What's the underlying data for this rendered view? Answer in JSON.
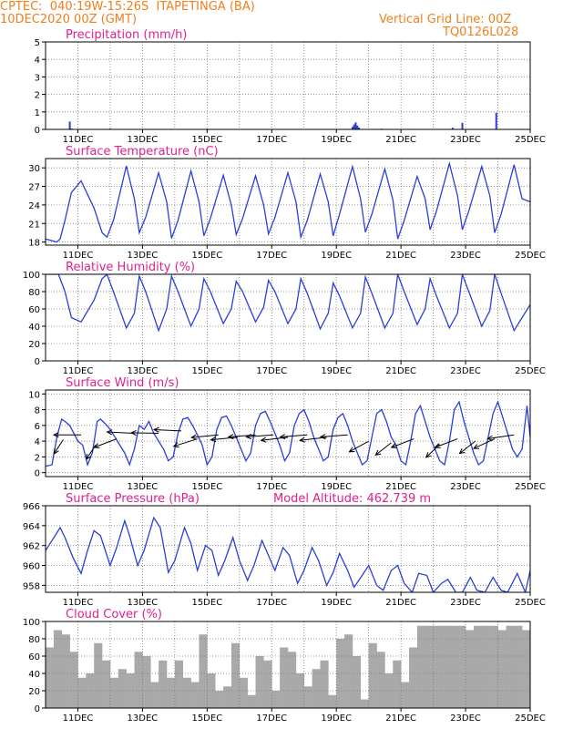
{
  "header": {
    "line1_left": "CPTEC:  040:19W-15:26S  ITAPETINGA (BA)",
    "line2_left": "10DEC2020 00Z (GMT)",
    "line2_right": "Vertical Grid Line: 00Z",
    "line3_right": "TQ0126L028"
  },
  "x_axis": {
    "tick_labels": [
      "11DEC",
      "13DEC",
      "15DEC",
      "17DEC",
      "19DEC",
      "21DEC",
      "23DEC",
      "25DEC"
    ],
    "tick_days": [
      1,
      3,
      5,
      7,
      9,
      11,
      13,
      15
    ],
    "range_days": [
      0,
      15
    ]
  },
  "colors": {
    "title": "#e0208f",
    "header": "#f07f1a",
    "line": "#2a3fd6",
    "cloud": "#a9a9a9",
    "grid": "#777777"
  },
  "chart_data": [
    {
      "type": "bar",
      "title": "Precipitation (mm/h)",
      "ylim": [
        0,
        5
      ],
      "yticks": [
        0,
        1,
        2,
        3,
        4,
        5
      ],
      "grid": true,
      "x": [
        0.75,
        0.8,
        2.0,
        5.0,
        9.5,
        9.55,
        9.6,
        9.65,
        9.7,
        10.4,
        11.3,
        12.6,
        12.9,
        13.95,
        14.8
      ],
      "values": [
        0.45,
        0.05,
        0.05,
        0.04,
        0.15,
        0.28,
        0.4,
        0.22,
        0.1,
        0.04,
        0.03,
        0.1,
        0.38,
        0.95,
        0.03
      ]
    },
    {
      "type": "line",
      "title": "Surface Temperature (nC)",
      "ylim": [
        17.5,
        31.5
      ],
      "yticks": [
        18,
        21,
        24,
        27,
        30
      ],
      "grid": true,
      "x": [
        0,
        0.35,
        0.45,
        0.6,
        0.8,
        1.1,
        1.5,
        1.75,
        1.9,
        2.1,
        2.5,
        2.75,
        2.9,
        3.1,
        3.5,
        3.75,
        3.9,
        4.1,
        4.5,
        4.75,
        4.9,
        5.1,
        5.5,
        5.75,
        5.9,
        6.1,
        6.5,
        6.75,
        6.9,
        7.1,
        7.5,
        7.75,
        7.9,
        8.1,
        8.5,
        8.75,
        8.9,
        9.1,
        9.5,
        9.75,
        9.9,
        10.1,
        10.5,
        10.75,
        10.9,
        11.1,
        11.5,
        11.75,
        11.9,
        12.1,
        12.5,
        12.75,
        12.9,
        13.1,
        13.5,
        13.75,
        13.9,
        14.1,
        14.5,
        14.75,
        15.0
      ],
      "series": [
        {
          "values": [
            18.5,
            18.0,
            18.5,
            21.5,
            26.0,
            27.9,
            23.5,
            19.5,
            18.8,
            21.5,
            30.3,
            25.0,
            19.5,
            22.0,
            29.2,
            24.5,
            18.6,
            21.5,
            29.5,
            24.5,
            19.0,
            21.8,
            28.8,
            24.0,
            19.2,
            21.8,
            28.7,
            24.0,
            19.3,
            22.0,
            29.2,
            24.5,
            18.8,
            21.5,
            29.0,
            24.5,
            19.0,
            22.5,
            30.2,
            25.0,
            19.6,
            22.5,
            29.8,
            24.8,
            18.5,
            21.5,
            28.6,
            25.0,
            20.0,
            23.0,
            30.7,
            25.5,
            20.0,
            23.0,
            30.2,
            25.5,
            19.5,
            22.5,
            30.5,
            25.0,
            24.5
          ]
        }
      ]
    },
    {
      "type": "line",
      "title": "Relative Humidity (%)",
      "ylim": [
        0,
        100
      ],
      "yticks": [
        0,
        20,
        40,
        60,
        80,
        100
      ],
      "grid": true,
      "x": [
        0,
        0.4,
        0.6,
        0.8,
        1.1,
        1.5,
        1.75,
        1.9,
        2.1,
        2.5,
        2.75,
        2.9,
        3.1,
        3.5,
        3.75,
        3.9,
        4.1,
        4.5,
        4.75,
        4.9,
        5.1,
        5.5,
        5.75,
        5.9,
        6.1,
        6.5,
        6.75,
        6.9,
        7.1,
        7.5,
        7.75,
        7.9,
        8.1,
        8.5,
        8.75,
        8.9,
        9.1,
        9.5,
        9.75,
        9.9,
        10.1,
        10.5,
        10.75,
        10.9,
        11.1,
        11.5,
        11.75,
        11.9,
        12.1,
        12.5,
        12.75,
        12.9,
        13.1,
        13.5,
        13.75,
        13.9,
        14.1,
        14.5,
        14.75,
        15.0
      ],
      "series": [
        {
          "values": [
            100,
            100,
            80,
            50,
            45,
            70,
            95,
            100,
            80,
            38,
            55,
            98,
            80,
            35,
            60,
            98,
            80,
            40,
            60,
            95,
            80,
            43,
            60,
            92,
            80,
            45,
            62,
            93,
            80,
            43,
            60,
            95,
            78,
            37,
            55,
            90,
            75,
            38,
            55,
            97,
            78,
            38,
            55,
            100,
            80,
            42,
            60,
            95,
            75,
            38,
            55,
            100,
            80,
            40,
            58,
            100,
            78,
            35,
            50,
            65
          ]
        }
      ]
    },
    {
      "type": "line",
      "title": "Surface Wind (m/s)",
      "ylim": [
        -0.5,
        10.5
      ],
      "yticks": [
        0,
        2,
        4,
        6,
        8,
        10
      ],
      "grid": true,
      "x": [
        0,
        0.2,
        0.35,
        0.5,
        0.6,
        0.75,
        0.9,
        1.0,
        1.15,
        1.3,
        1.45,
        1.6,
        1.7,
        1.85,
        2.0,
        2.15,
        2.3,
        2.45,
        2.6,
        2.75,
        2.9,
        3.05,
        3.2,
        3.35,
        3.5,
        3.65,
        3.8,
        3.95,
        4.1,
        4.25,
        4.4,
        4.55,
        4.7,
        4.85,
        5.0,
        5.15,
        5.3,
        5.45,
        5.6,
        5.75,
        5.9,
        6.05,
        6.2,
        6.35,
        6.5,
        6.65,
        6.8,
        6.95,
        7.1,
        7.25,
        7.4,
        7.55,
        7.7,
        7.85,
        8.0,
        8.15,
        8.3,
        8.45,
        8.6,
        8.75,
        8.9,
        9.05,
        9.2,
        9.35,
        9.5,
        9.65,
        9.8,
        9.95,
        10.1,
        10.25,
        10.4,
        10.55,
        10.7,
        10.85,
        11.0,
        11.15,
        11.3,
        11.45,
        11.6,
        11.75,
        11.9,
        12.05,
        12.2,
        12.35,
        12.5,
        12.65,
        12.8,
        12.95,
        13.1,
        13.25,
        13.4,
        13.55,
        13.7,
        13.85,
        14.0,
        14.15,
        14.3,
        14.45,
        14.6,
        14.75,
        14.9,
        15.0
      ],
      "series": [
        {
          "values": [
            0.8,
            1.0,
            4.5,
            6.8,
            6.5,
            6.0,
            4.8,
            4.0,
            3.5,
            1.0,
            2.5,
            6.5,
            6.8,
            6.2,
            5.5,
            4.5,
            3.5,
            2.5,
            1.0,
            3.0,
            6.0,
            5.5,
            6.5,
            5.0,
            4.0,
            3.0,
            1.5,
            2.0,
            5.0,
            6.8,
            7.0,
            6.0,
            4.8,
            3.5,
            1.0,
            2.0,
            5.5,
            7.0,
            7.2,
            6.0,
            4.5,
            3.0,
            1.5,
            2.5,
            6.0,
            7.5,
            7.8,
            6.5,
            5.0,
            3.5,
            1.5,
            2.5,
            6.0,
            7.5,
            8.0,
            6.5,
            4.5,
            3.0,
            1.5,
            2.0,
            5.5,
            7.0,
            7.5,
            6.0,
            4.0,
            2.5,
            1.0,
            1.5,
            4.5,
            7.5,
            8.0,
            6.5,
            4.5,
            3.5,
            1.5,
            1.0,
            4.0,
            7.5,
            8.5,
            6.5,
            4.5,
            3.0,
            1.5,
            1.0,
            4.0,
            8.0,
            9.0,
            6.5,
            4.5,
            2.5,
            1.0,
            1.5,
            4.5,
            7.5,
            9.0,
            7.0,
            5.0,
            3.0,
            2.0,
            3.0,
            8.5,
            4.5
          ]
        }
      ],
      "wind_arrows": [
        {
          "x": 0.55,
          "speed": 4.2,
          "dir_deg": 20
        },
        {
          "x": 1.1,
          "speed": 4.8,
          "dir_deg": 90
        },
        {
          "x": 1.55,
          "speed": 3.5,
          "dir_deg": 20
        },
        {
          "x": 2.2,
          "speed": 4.3,
          "dir_deg": 55
        },
        {
          "x": 2.75,
          "speed": 5.0,
          "dir_deg": 95
        },
        {
          "x": 3.5,
          "speed": 5.0,
          "dir_deg": 92
        },
        {
          "x": 4.2,
          "speed": 5.3,
          "dir_deg": 95
        },
        {
          "x": 4.7,
          "speed": 4.3,
          "dir_deg": 60
        },
        {
          "x": 5.35,
          "speed": 4.8,
          "dir_deg": 80
        },
        {
          "x": 5.95,
          "speed": 4.5,
          "dir_deg": 80
        },
        {
          "x": 6.5,
          "speed": 4.8,
          "dir_deg": 82
        },
        {
          "x": 7.05,
          "speed": 4.8,
          "dir_deg": 82
        },
        {
          "x": 7.5,
          "speed": 4.5,
          "dir_deg": 78
        },
        {
          "x": 8.1,
          "speed": 4.8,
          "dir_deg": 82
        },
        {
          "x": 8.7,
          "speed": 4.5,
          "dir_deg": 78
        },
        {
          "x": 9.35,
          "speed": 4.8,
          "dir_deg": 82
        },
        {
          "x": 10.0,
          "speed": 4.0,
          "dir_deg": 45
        },
        {
          "x": 10.7,
          "speed": 3.8,
          "dir_deg": 35
        },
        {
          "x": 11.4,
          "speed": 4.3,
          "dir_deg": 55
        },
        {
          "x": 12.2,
          "speed": 3.6,
          "dir_deg": 30
        },
        {
          "x": 12.75,
          "speed": 4.3,
          "dir_deg": 55
        },
        {
          "x": 13.3,
          "speed": 4.0,
          "dir_deg": 35
        },
        {
          "x": 13.9,
          "speed": 4.3,
          "dir_deg": 50
        },
        {
          "x": 14.5,
          "speed": 4.8,
          "dir_deg": 75
        }
      ]
    },
    {
      "type": "line",
      "title": "Surface Pressure (hPa)",
      "subtitle": "Model Altitude: 462.739 m",
      "ylim": [
        957.3,
        966
      ],
      "yticks": [
        958,
        960,
        962,
        964,
        966
      ],
      "grid": true,
      "x": [
        0,
        0.2,
        0.45,
        0.6,
        0.85,
        1.1,
        1.3,
        1.5,
        1.7,
        2.0,
        2.2,
        2.45,
        2.6,
        2.85,
        3.05,
        3.35,
        3.55,
        3.8,
        4.0,
        4.3,
        4.5,
        4.7,
        4.95,
        5.15,
        5.35,
        5.55,
        5.8,
        6.0,
        6.25,
        6.45,
        6.7,
        6.9,
        7.1,
        7.35,
        7.55,
        7.8,
        8.0,
        8.25,
        8.45,
        8.7,
        8.9,
        9.1,
        9.35,
        9.55,
        9.8,
        10.0,
        10.25,
        10.45,
        10.7,
        10.9,
        11.1,
        11.35,
        11.55,
        11.8,
        12.0,
        12.25,
        12.45,
        12.7,
        12.9,
        13.15,
        13.35,
        13.6,
        13.85,
        14.1,
        14.3,
        14.6,
        14.85,
        15.0
      ],
      "series": [
        {
          "values": [
            961.5,
            962.5,
            963.8,
            962.8,
            960.8,
            959.2,
            961.5,
            963.5,
            963.0,
            960.0,
            961.8,
            964.5,
            963.0,
            960.0,
            961.5,
            964.8,
            963.8,
            959.3,
            960.5,
            963.8,
            962.2,
            959.5,
            962.0,
            961.5,
            959.0,
            960.5,
            962.8,
            960.5,
            958.5,
            960.0,
            962.5,
            961.0,
            959.5,
            961.8,
            961.0,
            958.2,
            959.5,
            961.8,
            960.5,
            958.0,
            959.3,
            961.2,
            959.5,
            957.8,
            959.0,
            960.0,
            958.0,
            957.5,
            959.5,
            960.0,
            958.2,
            957.3,
            959.2,
            959.0,
            957.3,
            958.2,
            958.6,
            957.3,
            957.3,
            958.8,
            957.5,
            957.3,
            958.8,
            957.5,
            957.3,
            959.2,
            957.3,
            959.5
          ]
        }
      ]
    },
    {
      "type": "bar",
      "title": "Cloud Cover (%)",
      "ylim": [
        0,
        100
      ],
      "yticks": [
        0,
        20,
        40,
        60,
        80,
        100
      ],
      "grid": true,
      "x": [
        0.0,
        0.25,
        0.5,
        0.75,
        1.0,
        1.25,
        1.5,
        1.75,
        2.0,
        2.25,
        2.5,
        2.75,
        3.0,
        3.25,
        3.5,
        3.75,
        4.0,
        4.25,
        4.5,
        4.75,
        5.0,
        5.25,
        5.5,
        5.75,
        6.0,
        6.25,
        6.5,
        6.75,
        7.0,
        7.25,
        7.5,
        7.75,
        8.0,
        8.25,
        8.5,
        8.75,
        9.0,
        9.25,
        9.5,
        9.75,
        10.0,
        10.25,
        10.5,
        10.75,
        11.0,
        11.25,
        11.5,
        11.75,
        12.0,
        12.25,
        12.5,
        12.75,
        13.0,
        13.25,
        13.5,
        13.75,
        14.0,
        14.25,
        14.5,
        14.75
      ],
      "values": [
        70,
        90,
        85,
        65,
        35,
        40,
        75,
        55,
        35,
        45,
        40,
        65,
        60,
        30,
        55,
        35,
        55,
        35,
        30,
        85,
        40,
        20,
        25,
        75,
        35,
        15,
        60,
        55,
        20,
        70,
        65,
        40,
        25,
        45,
        55,
        15,
        80,
        85,
        60,
        10,
        75,
        65,
        40,
        55,
        30,
        70,
        95,
        95,
        95,
        95,
        95,
        95,
        90,
        95,
        95,
        95,
        90,
        95,
        95,
        90
      ]
    }
  ]
}
